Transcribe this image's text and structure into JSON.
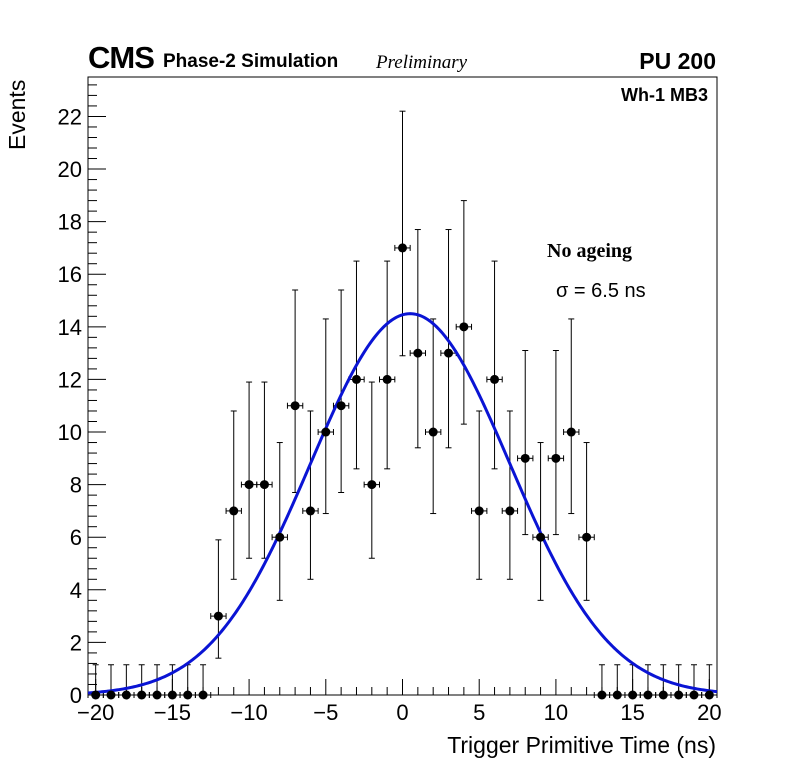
{
  "header": {
    "experiment": "CMS",
    "subtitle": "Phase-2 Simulation",
    "status": "Preliminary",
    "pileup": "PU 200"
  },
  "annotations": {
    "region": "Wh-1 MB3",
    "condition": "No ageing",
    "sigma_text": "σ = 6.5 ns"
  },
  "colors": {
    "fit": "#0a14d4",
    "points": "#000000",
    "axis": "#000000"
  },
  "chart_data": {
    "type": "scatter",
    "title": "",
    "xlabel": "Trigger Primitive Time (ns)",
    "ylabel": "Events",
    "xlim": [
      -20.5,
      20.5
    ],
    "ylim": [
      0,
      23.5
    ],
    "xticks": [
      -20,
      -15,
      -10,
      -5,
      0,
      5,
      10,
      15,
      20
    ],
    "xtick_labels": [
      "−20",
      "−15",
      "−10",
      "−5",
      "0",
      "5",
      "10",
      "15",
      "20"
    ],
    "yticks": [
      0,
      2,
      4,
      6,
      8,
      10,
      12,
      14,
      16,
      18,
      20,
      22
    ],
    "ytick_labels": [
      "0",
      "2",
      "4",
      "6",
      "8",
      "10",
      "12",
      "14",
      "16",
      "18",
      "20",
      "22"
    ],
    "grid": false,
    "bin_width": 1,
    "series": [
      {
        "name": "Simulation",
        "x": [
          -20,
          -19,
          -18,
          -17,
          -16,
          -15,
          -14,
          -13,
          -12,
          -11,
          -10,
          -9,
          -8,
          -7,
          -6,
          -5,
          -4,
          -3,
          -2,
          -1,
          0,
          1,
          2,
          3,
          4,
          5,
          6,
          7,
          8,
          9,
          10,
          11,
          12,
          13,
          14,
          15,
          16,
          17,
          18,
          19,
          20
        ],
        "y": [
          0,
          0,
          0,
          0,
          0,
          0,
          0,
          0,
          3,
          7,
          8,
          8,
          6,
          11,
          7,
          10,
          11,
          12,
          8,
          12,
          17,
          13,
          10,
          13,
          14,
          7,
          12,
          7,
          9,
          6,
          9,
          10,
          6,
          0,
          0,
          0,
          0,
          0,
          0,
          0,
          0
        ],
        "yerr_low": [
          0,
          0,
          0,
          0,
          0,
          0,
          0,
          0,
          1.6,
          2.6,
          2.8,
          2.8,
          2.4,
          3.3,
          2.6,
          3.1,
          3.3,
          3.4,
          2.8,
          3.4,
          4.1,
          3.6,
          3.1,
          3.6,
          3.7,
          2.6,
          3.4,
          2.6,
          2.9,
          2.4,
          2.9,
          3.1,
          2.4,
          0,
          0,
          0,
          0,
          0,
          0,
          0,
          0
        ],
        "yerr_high": [
          1.15,
          1.15,
          1.15,
          1.15,
          1.15,
          1.15,
          1.15,
          1.15,
          2.9,
          3.8,
          3.9,
          3.9,
          3.6,
          4.4,
          3.8,
          4.3,
          4.4,
          4.5,
          3.9,
          4.5,
          5.2,
          4.7,
          4.3,
          4.7,
          4.8,
          3.8,
          4.5,
          3.8,
          4.1,
          3.6,
          4.1,
          4.3,
          3.6,
          1.15,
          1.15,
          1.15,
          1.15,
          1.15,
          1.15,
          1.15,
          1.15
        ]
      }
    ],
    "fit": {
      "name": "Gaussian fit",
      "function": "gaussian",
      "amplitude": 14.5,
      "mean": 0.5,
      "sigma": 6.5,
      "range": [
        -20.5,
        20.5
      ]
    }
  }
}
